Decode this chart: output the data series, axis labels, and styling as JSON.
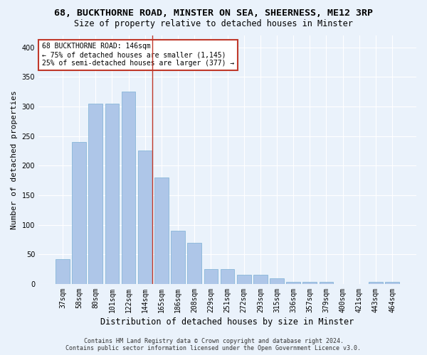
{
  "title": "68, BUCKTHORNE ROAD, MINSTER ON SEA, SHEERNESS, ME12 3RP",
  "subtitle": "Size of property relative to detached houses in Minster",
  "xlabel": "Distribution of detached houses by size in Minster",
  "ylabel": "Number of detached properties",
  "categories": [
    "37sqm",
    "58sqm",
    "80sqm",
    "101sqm",
    "122sqm",
    "144sqm",
    "165sqm",
    "186sqm",
    "208sqm",
    "229sqm",
    "251sqm",
    "272sqm",
    "293sqm",
    "315sqm",
    "336sqm",
    "357sqm",
    "379sqm",
    "400sqm",
    "421sqm",
    "443sqm",
    "464sqm"
  ],
  "values": [
    42,
    240,
    305,
    305,
    325,
    225,
    180,
    90,
    70,
    25,
    25,
    15,
    15,
    9,
    3,
    3,
    3,
    0,
    0,
    3,
    3
  ],
  "bar_color": "#aec6e8",
  "bar_edge_color": "#7aafd4",
  "highlight_line_color": "#c0392b",
  "annotation_text": "68 BUCKTHORNE ROAD: 146sqm\n← 75% of detached houses are smaller (1,145)\n25% of semi-detached houses are larger (377) →",
  "annotation_box_color": "#ffffff",
  "annotation_box_edge_color": "#c0392b",
  "ylim": [
    0,
    420
  ],
  "yticks": [
    0,
    50,
    100,
    150,
    200,
    250,
    300,
    350,
    400
  ],
  "footer_line1": "Contains HM Land Registry data © Crown copyright and database right 2024.",
  "footer_line2": "Contains public sector information licensed under the Open Government Licence v3.0.",
  "bg_color": "#eaf2fb",
  "plot_bg_color": "#eaf2fb",
  "grid_color": "#ffffff",
  "title_fontsize": 9.5,
  "subtitle_fontsize": 8.5,
  "tick_fontsize": 7,
  "ylabel_fontsize": 8,
  "xlabel_fontsize": 8.5,
  "annotation_fontsize": 7,
  "footer_fontsize": 6
}
